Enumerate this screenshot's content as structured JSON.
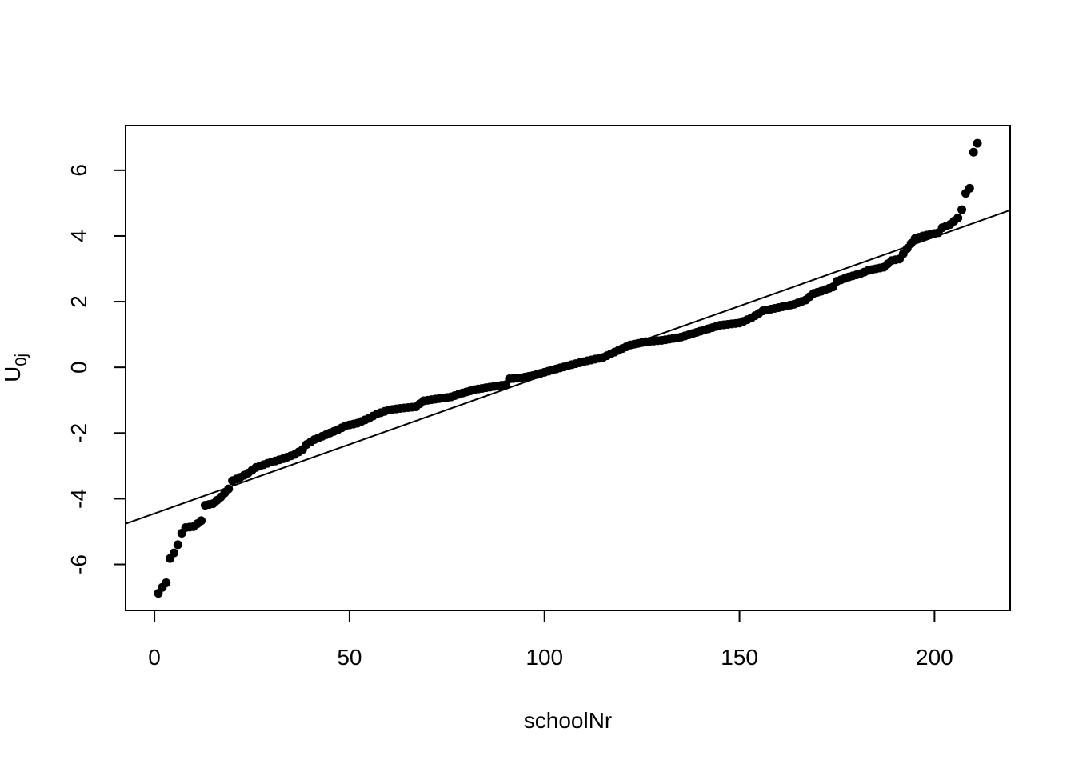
{
  "chart_data": {
    "type": "scatter",
    "title": "",
    "xlabel": "schoolNr",
    "ylabel_main": "U",
    "ylabel_sub": "0j",
    "xlim": [
      -7.4,
      219.4
    ],
    "ylim": [
      -7.4,
      7.36
    ],
    "x_ticks": [
      0,
      50,
      100,
      150,
      200
    ],
    "y_ticks": [
      -6,
      -4,
      -2,
      0,
      2,
      4,
      6
    ],
    "grid": false,
    "point_color": "#000000",
    "fit_line": {
      "intercept": -4.45,
      "slope": 0.0421
    },
    "anchors": [
      [
        1,
        -6.88
      ],
      [
        2,
        -6.7
      ],
      [
        3,
        -6.56
      ],
      [
        4,
        -5.82
      ],
      [
        5,
        -5.65
      ],
      [
        6,
        -5.4
      ],
      [
        7,
        -5.05
      ],
      [
        8,
        -4.88
      ],
      [
        10,
        -4.85
      ],
      [
        12,
        -4.67
      ],
      [
        13,
        -4.2
      ],
      [
        15,
        -4.15
      ],
      [
        17,
        -3.95
      ],
      [
        19,
        -3.7
      ],
      [
        20,
        -3.45
      ],
      [
        22,
        -3.35
      ],
      [
        24,
        -3.22
      ],
      [
        26,
        -3.05
      ],
      [
        29,
        -2.92
      ],
      [
        33,
        -2.78
      ],
      [
        36,
        -2.65
      ],
      [
        38,
        -2.5
      ],
      [
        39,
        -2.35
      ],
      [
        41,
        -2.2
      ],
      [
        43,
        -2.1
      ],
      [
        45,
        -2.0
      ],
      [
        47,
        -1.9
      ],
      [
        49,
        -1.78
      ],
      [
        52,
        -1.7
      ],
      [
        55,
        -1.55
      ],
      [
        57,
        -1.42
      ],
      [
        60,
        -1.3
      ],
      [
        63,
        -1.25
      ],
      [
        67,
        -1.2
      ],
      [
        69,
        -1.02
      ],
      [
        73,
        -0.95
      ],
      [
        76,
        -0.9
      ],
      [
        79,
        -0.78
      ],
      [
        82,
        -0.68
      ],
      [
        86,
        -0.6
      ],
      [
        90,
        -0.53
      ],
      [
        91,
        -0.35
      ],
      [
        94,
        -0.32
      ],
      [
        97,
        -0.25
      ],
      [
        100,
        -0.15
      ],
      [
        103,
        -0.05
      ],
      [
        107,
        0.08
      ],
      [
        111,
        0.2
      ],
      [
        115,
        0.3
      ],
      [
        119,
        0.52
      ],
      [
        122,
        0.68
      ],
      [
        126,
        0.78
      ],
      [
        130,
        0.82
      ],
      [
        135,
        0.92
      ],
      [
        140,
        1.1
      ],
      [
        145,
        1.28
      ],
      [
        150,
        1.35
      ],
      [
        153,
        1.5
      ],
      [
        156,
        1.72
      ],
      [
        160,
        1.82
      ],
      [
        164,
        1.92
      ],
      [
        167,
        2.05
      ],
      [
        169,
        2.25
      ],
      [
        171,
        2.32
      ],
      [
        174,
        2.45
      ],
      [
        175,
        2.62
      ],
      [
        178,
        2.75
      ],
      [
        181,
        2.85
      ],
      [
        183,
        2.95
      ],
      [
        187,
        3.05
      ],
      [
        189,
        3.25
      ],
      [
        191,
        3.3
      ],
      [
        193,
        3.62
      ],
      [
        195,
        3.92
      ],
      [
        197,
        4.0
      ],
      [
        199,
        4.05
      ],
      [
        201,
        4.1
      ],
      [
        202,
        4.25
      ],
      [
        204,
        4.35
      ],
      [
        205,
        4.45
      ],
      [
        206,
        4.55
      ],
      [
        207,
        4.8
      ],
      [
        208,
        5.3
      ],
      [
        209,
        5.45
      ],
      [
        210,
        6.55
      ],
      [
        211,
        6.82
      ]
    ]
  }
}
